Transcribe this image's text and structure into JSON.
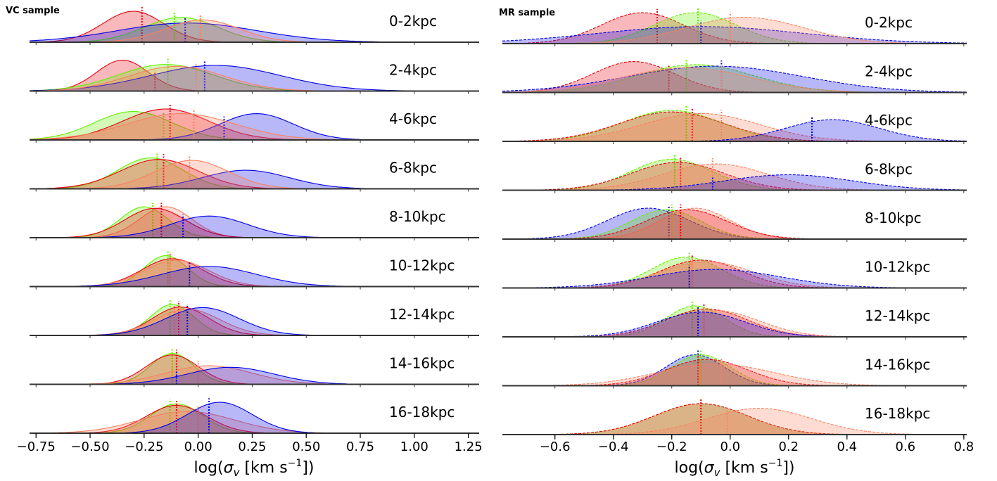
{
  "chart_data": [
    {
      "type": "area",
      "title": "VC sample",
      "xlabel": "log(σ_v [km s⁻¹])",
      "xlim": [
        -0.78,
        1.3
      ],
      "xticks": [
        -0.75,
        -0.5,
        -0.25,
        0.0,
        0.25,
        0.5,
        0.75,
        1.0,
        1.25
      ],
      "xtick_labels": [
        "−0.75",
        "−0.50",
        "−0.25",
        "0.00",
        "0.25",
        "0.50",
        "0.75",
        "1.00",
        "1.25"
      ],
      "line_style": "solid",
      "series_colors": {
        "red": "#e8000b",
        "blue": "#0000e8",
        "green": "#66ee00",
        "salmon": "#fa8060"
      },
      "rows": [
        {
          "label": "0-2kpc",
          "peaks": [
            {
              "color": "red",
              "peak": -0.3,
              "width": 0.14,
              "height": 1.0,
              "median": -0.26
            },
            {
              "color": "green",
              "peak": -0.08,
              "width": 0.17,
              "height": 0.8,
              "median": -0.11
            },
            {
              "color": "blue",
              "peak": -0.05,
              "width": 0.32,
              "height": 0.62,
              "median": -0.06
            },
            {
              "color": "salmon",
              "peak": 0.02,
              "width": 0.17,
              "height": 0.72,
              "median": 0.01
            }
          ]
        },
        {
          "label": "2-4kpc",
          "peaks": [
            {
              "color": "red",
              "peak": -0.35,
              "width": 0.12,
              "height": 1.0,
              "median": -0.2
            },
            {
              "color": "green",
              "peak": -0.15,
              "width": 0.22,
              "height": 0.86,
              "median": -0.14
            },
            {
              "color": "blue",
              "peak": 0.08,
              "width": 0.3,
              "height": 0.83,
              "median": 0.03
            },
            {
              "color": "salmon",
              "peak": -0.1,
              "width": 0.22,
              "height": 0.8,
              "median": -0.01
            }
          ]
        },
        {
          "label": "4-6kpc",
          "peaks": [
            {
              "color": "green",
              "peak": -0.3,
              "width": 0.18,
              "height": 0.92,
              "median": -0.16
            },
            {
              "color": "red",
              "peak": -0.15,
              "width": 0.2,
              "height": 1.0,
              "median": -0.13
            },
            {
              "color": "blue",
              "peak": 0.27,
              "width": 0.17,
              "height": 0.85,
              "median": 0.12
            },
            {
              "color": "salmon",
              "peak": -0.08,
              "width": 0.25,
              "height": 0.85,
              "median": -0.02
            }
          ]
        },
        {
          "label": "6-8kpc",
          "peaks": [
            {
              "color": "green",
              "peak": -0.22,
              "width": 0.15,
              "height": 1.0,
              "median": -0.19
            },
            {
              "color": "red",
              "peak": -0.18,
              "width": 0.18,
              "height": 0.95,
              "median": -0.16
            },
            {
              "color": "blue",
              "peak": 0.22,
              "width": 0.2,
              "height": 0.6,
              "median": -0.04
            },
            {
              "color": "salmon",
              "peak": -0.03,
              "width": 0.17,
              "height": 0.92,
              "median": -0.04
            }
          ]
        },
        {
          "label": "8-10kpc",
          "peaks": [
            {
              "color": "green",
              "peak": -0.25,
              "width": 0.11,
              "height": 1.0,
              "median": -0.21
            },
            {
              "color": "salmon",
              "peak": -0.15,
              "width": 0.12,
              "height": 1.0,
              "median": -0.17
            },
            {
              "color": "red",
              "peak": -0.2,
              "width": 0.14,
              "height": 0.95,
              "median": -0.17
            },
            {
              "color": "blue",
              "peak": 0.05,
              "width": 0.18,
              "height": 0.7,
              "median": -0.07
            }
          ]
        },
        {
          "label": "10-12kpc",
          "peaks": [
            {
              "color": "green",
              "peak": -0.15,
              "width": 0.1,
              "height": 1.0,
              "median": -0.14
            },
            {
              "color": "red",
              "peak": -0.12,
              "width": 0.14,
              "height": 0.9,
              "median": -0.13
            },
            {
              "color": "salmon",
              "peak": -0.1,
              "width": 0.15,
              "height": 0.85,
              "median": -0.13
            },
            {
              "color": "blue",
              "peak": 0.05,
              "width": 0.22,
              "height": 0.65,
              "median": -0.04
            }
          ]
        },
        {
          "label": "12-14kpc",
          "peaks": [
            {
              "color": "green",
              "peak": -0.12,
              "width": 0.1,
              "height": 1.0,
              "median": -0.13
            },
            {
              "color": "red",
              "peak": -0.08,
              "width": 0.13,
              "height": 0.92,
              "median": -0.09
            },
            {
              "color": "salmon",
              "peak": -0.05,
              "width": 0.15,
              "height": 0.85,
              "median": -0.11
            },
            {
              "color": "blue",
              "peak": 0.02,
              "width": 0.17,
              "height": 0.9,
              "median": -0.05
            }
          ]
        },
        {
          "label": "14-16kpc",
          "peaks": [
            {
              "color": "green",
              "peak": -0.12,
              "width": 0.1,
              "height": 1.0,
              "median": -0.12
            },
            {
              "color": "red",
              "peak": -0.12,
              "width": 0.12,
              "height": 0.95,
              "median": -0.1
            },
            {
              "color": "salmon",
              "peak": 0.05,
              "width": 0.2,
              "height": 0.6,
              "median": 0.0
            },
            {
              "color": "blue",
              "peak": 0.15,
              "width": 0.2,
              "height": 0.55,
              "median": -0.1
            }
          ]
        },
        {
          "label": "16-18kpc",
          "peaks": [
            {
              "color": "green",
              "peak": -0.1,
              "width": 0.12,
              "height": 0.95,
              "median": -0.13
            },
            {
              "color": "red",
              "peak": -0.1,
              "width": 0.14,
              "height": 0.9,
              "median": -0.1
            },
            {
              "color": "salmon",
              "peak": -0.05,
              "width": 0.22,
              "height": 0.7,
              "median": 0.0
            },
            {
              "color": "blue",
              "peak": 0.1,
              "width": 0.15,
              "height": 1.0,
              "median": 0.05
            }
          ]
        }
      ]
    },
    {
      "type": "area",
      "title": "MR sample",
      "xlabel": "log(σ_v [km s⁻¹])",
      "xlim": [
        -0.78,
        0.81
      ],
      "xticks": [
        -0.6,
        -0.4,
        -0.2,
        0.0,
        0.2,
        0.4,
        0.6,
        0.8
      ],
      "xtick_labels": [
        "−0.6",
        "−0.4",
        "−0.2",
        "0.0",
        "0.2",
        "0.4",
        "0.6",
        "0.8"
      ],
      "line_style": "dashed",
      "series_colors": {
        "red": "#e8000b",
        "blue": "#0000e8",
        "green": "#66ee00",
        "salmon": "#fa8060"
      },
      "rows": [
        {
          "label": "0-2kpc",
          "peaks": [
            {
              "color": "red",
              "peak": -0.3,
              "width": 0.14,
              "height": 1.0,
              "median": -0.25
            },
            {
              "color": "green",
              "peak": -0.12,
              "width": 0.14,
              "height": 1.0,
              "median": -0.11
            },
            {
              "color": "blue",
              "peak": -0.1,
              "width": 0.35,
              "height": 0.55,
              "median": -0.1
            },
            {
              "color": "salmon",
              "peak": 0.05,
              "width": 0.2,
              "height": 0.85,
              "median": 0.0
            }
          ]
        },
        {
          "label": "2-4kpc",
          "peaks": [
            {
              "color": "red",
              "peak": -0.33,
              "width": 0.14,
              "height": 1.0,
              "median": -0.21
            },
            {
              "color": "green",
              "peak": -0.12,
              "width": 0.2,
              "height": 0.9,
              "median": -0.15
            },
            {
              "color": "blue",
              "peak": -0.05,
              "width": 0.3,
              "height": 0.85,
              "median": -0.03
            },
            {
              "color": "salmon",
              "peak": -0.15,
              "width": 0.22,
              "height": 0.8,
              "median": -0.03
            }
          ]
        },
        {
          "label": "4-6kpc",
          "peaks": [
            {
              "color": "green",
              "peak": -0.2,
              "width": 0.17,
              "height": 1.0,
              "median": -0.15
            },
            {
              "color": "red",
              "peak": -0.2,
              "width": 0.18,
              "height": 0.95,
              "median": -0.13
            },
            {
              "color": "salmon",
              "peak": -0.1,
              "width": 0.2,
              "height": 0.9,
              "median": -0.03
            },
            {
              "color": "blue",
              "peak": 0.35,
              "width": 0.16,
              "height": 0.7,
              "median": 0.28
            }
          ]
        },
        {
          "label": "6-8kpc",
          "peaks": [
            {
              "color": "green",
              "peak": -0.2,
              "width": 0.14,
              "height": 1.0,
              "median": -0.19
            },
            {
              "color": "red",
              "peak": -0.18,
              "width": 0.16,
              "height": 0.9,
              "median": -0.17
            },
            {
              "color": "salmon",
              "peak": -0.05,
              "width": 0.18,
              "height": 0.85,
              "median": -0.06
            },
            {
              "color": "blue",
              "peak": 0.2,
              "width": 0.22,
              "height": 0.5,
              "median": -0.06
            }
          ]
        },
        {
          "label": "8-10kpc",
          "peaks": [
            {
              "color": "blue",
              "peak": -0.28,
              "width": 0.14,
              "height": 1.0,
              "median": -0.21
            },
            {
              "color": "green",
              "peak": -0.22,
              "width": 0.12,
              "height": 0.95,
              "median": -0.2
            },
            {
              "color": "salmon",
              "peak": -0.12,
              "width": 0.12,
              "height": 1.0,
              "median": -0.17
            },
            {
              "color": "red",
              "peak": -0.15,
              "width": 0.14,
              "height": 0.95,
              "median": -0.17
            }
          ]
        },
        {
          "label": "10-12kpc",
          "peaks": [
            {
              "color": "green",
              "peak": -0.15,
              "width": 0.12,
              "height": 1.0,
              "median": -0.14
            },
            {
              "color": "red",
              "peak": -0.1,
              "width": 0.14,
              "height": 0.9,
              "median": -0.13
            },
            {
              "color": "salmon",
              "peak": -0.08,
              "width": 0.16,
              "height": 0.85,
              "median": -0.13
            },
            {
              "color": "blue",
              "peak": -0.05,
              "width": 0.22,
              "height": 0.6,
              "median": -0.14
            }
          ]
        },
        {
          "label": "12-14kpc",
          "peaks": [
            {
              "color": "green",
              "peak": -0.12,
              "width": 0.1,
              "height": 1.0,
              "median": -0.13
            },
            {
              "color": "red",
              "peak": -0.08,
              "width": 0.14,
              "height": 0.9,
              "median": -0.09
            },
            {
              "color": "salmon",
              "peak": -0.05,
              "width": 0.15,
              "height": 0.85,
              "median": -0.09
            },
            {
              "color": "blue",
              "peak": -0.1,
              "width": 0.15,
              "height": 0.8,
              "median": -0.11
            }
          ]
        },
        {
          "label": "14-16kpc",
          "peaks": [
            {
              "color": "blue",
              "peak": -0.12,
              "width": 0.1,
              "height": 1.0,
              "median": -0.11
            },
            {
              "color": "green",
              "peak": -0.1,
              "width": 0.1,
              "height": 1.0,
              "median": -0.1
            },
            {
              "color": "red",
              "peak": -0.08,
              "width": 0.14,
              "height": 0.85,
              "median": -0.11
            },
            {
              "color": "salmon",
              "peak": -0.05,
              "width": 0.2,
              "height": 0.7,
              "median": -0.03
            }
          ]
        },
        {
          "label": "16-18kpc",
          "peaks": [
            {
              "color": "green",
              "peak": -0.1,
              "width": 0.16,
              "height": 1.0,
              "median": -0.1
            },
            {
              "color": "red",
              "peak": -0.1,
              "width": 0.16,
              "height": 1.0,
              "median": -0.1
            },
            {
              "color": "salmon",
              "peak": 0.1,
              "width": 0.18,
              "height": 0.85,
              "median": -0.01
            }
          ]
        }
      ]
    }
  ]
}
